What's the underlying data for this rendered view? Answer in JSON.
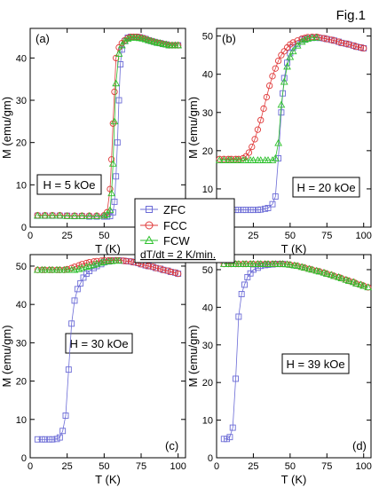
{
  "figure_label": "Fig.1",
  "legend": {
    "entries": [
      {
        "label": "ZFC",
        "marker": "square",
        "color": "#6b6bd6"
      },
      {
        "label": "FCC",
        "marker": "circle",
        "color": "#e03a3a"
      },
      {
        "label": "FCW",
        "marker": "triangle",
        "color": "#2ec02e"
      }
    ],
    "rate_text": "dT/dt = 2 K/min."
  },
  "chart_data": [
    {
      "type": "scatter",
      "panel": "(a)",
      "field_label": "H = 5 kOe",
      "xlabel": "T (K)",
      "ylabel": "M (emu/gm)",
      "xlim": [
        0,
        105
      ],
      "ylim": [
        0,
        47
      ],
      "xticks": [
        0,
        25,
        50,
        75,
        100
      ],
      "yticks": [
        0,
        10,
        20,
        30,
        40
      ],
      "series": [
        {
          "name": "ZFC",
          "x": [
            5,
            10,
            15,
            20,
            25,
            30,
            35,
            40,
            45,
            50,
            52,
            54,
            56,
            57,
            58,
            59,
            60,
            61,
            62,
            64,
            66,
            68,
            70,
            72,
            74,
            76,
            78,
            80,
            82,
            84,
            86,
            88,
            90,
            92,
            94,
            96,
            98,
            100
          ],
          "y": [
            2.7,
            2.7,
            2.7,
            2.7,
            2.7,
            2.6,
            2.6,
            2.5,
            2.5,
            2.5,
            2.5,
            2.6,
            3.5,
            6,
            12,
            20,
            30,
            38.5,
            42,
            44,
            44.8,
            45,
            45,
            45,
            44.9,
            44.7,
            44.5,
            44.2,
            44,
            43.8,
            43.6,
            43.5,
            43.3,
            43.2,
            43,
            43,
            43,
            43
          ]
        },
        {
          "name": "FCC",
          "x": [
            5,
            10,
            15,
            20,
            25,
            30,
            35,
            40,
            45,
            50,
            52,
            54,
            55,
            56,
            57,
            58,
            60,
            62,
            64,
            66,
            68,
            70,
            72,
            74,
            76,
            78,
            80,
            82,
            84,
            86,
            88,
            90,
            92,
            94,
            96,
            98,
            100
          ],
          "y": [
            2.8,
            2.8,
            2.8,
            2.8,
            2.7,
            2.7,
            2.7,
            2.7,
            2.7,
            2.8,
            3.5,
            9,
            16,
            24.5,
            32,
            40,
            42.5,
            43.5,
            44.2,
            44.7,
            45,
            45,
            45,
            44.9,
            44.7,
            44.5,
            44.2,
            44,
            43.8,
            43.6,
            43.5,
            43.3,
            43.2,
            43,
            43,
            43,
            43
          ]
        },
        {
          "name": "FCW",
          "x": [
            5,
            10,
            15,
            20,
            25,
            30,
            35,
            40,
            45,
            50,
            52,
            54,
            55,
            56,
            57,
            58,
            60,
            62,
            64,
            66,
            68,
            70,
            72,
            74,
            76,
            78,
            80,
            82,
            84,
            86,
            88,
            90,
            92,
            94,
            96,
            98,
            100
          ],
          "y": [
            2.7,
            2.7,
            2.7,
            2.7,
            2.6,
            2.6,
            2.6,
            2.6,
            2.6,
            2.7,
            3,
            4,
            8,
            15,
            25,
            34,
            41,
            43,
            44,
            44.5,
            44.8,
            44.8,
            44.8,
            44.7,
            44.6,
            44.4,
            44.2,
            44,
            43.8,
            43.6,
            43.5,
            43.3,
            43.2,
            43,
            43,
            43,
            43
          ]
        }
      ]
    },
    {
      "type": "scatter",
      "panel": "(b)",
      "field_label": "H = 20 kOe",
      "xlabel": "T (K)",
      "ylabel": "M (emu/gm)",
      "xlim": [
        0,
        105
      ],
      "ylim": [
        0,
        52
      ],
      "xticks": [
        0,
        25,
        50,
        75,
        100
      ],
      "yticks": [
        0,
        10,
        20,
        30,
        40,
        50
      ],
      "series": [
        {
          "name": "ZFC",
          "x": [
            2,
            5,
            8,
            10,
            13,
            15,
            18,
            20,
            23,
            25,
            28,
            30,
            33,
            35,
            38,
            40,
            42,
            44,
            45,
            46,
            48,
            50,
            52,
            55,
            58,
            60,
            62,
            65,
            68,
            70,
            73,
            75,
            78,
            80,
            83,
            85,
            88,
            90,
            93,
            95,
            98,
            100
          ],
          "y": [
            4.5,
            4.5,
            4.5,
            4.5,
            4.5,
            4.5,
            4.5,
            4.5,
            4.5,
            4.5,
            4.5,
            4.6,
            4.8,
            5,
            6,
            8,
            18,
            30,
            35,
            39,
            43,
            45.5,
            47,
            48,
            49,
            49.2,
            49.4,
            49.5,
            49.6,
            49.5,
            49.4,
            49.2,
            49,
            48.8,
            48.5,
            48.2,
            48,
            47.8,
            47.5,
            47.2,
            47,
            46.8
          ]
        },
        {
          "name": "FCC",
          "x": [
            2,
            5,
            8,
            10,
            13,
            15,
            18,
            20,
            22,
            24,
            26,
            28,
            30,
            32,
            34,
            36,
            38,
            40,
            42,
            44,
            46,
            48,
            50,
            52,
            55,
            58,
            60,
            62,
            65,
            68,
            70,
            73,
            75,
            78,
            80,
            83,
            85,
            88,
            90,
            93,
            95,
            98,
            100
          ],
          "y": [
            17.8,
            17.8,
            17.8,
            17.8,
            17.8,
            17.8,
            18,
            18.5,
            19.5,
            21,
            23,
            25.5,
            28,
            31,
            34,
            37,
            39.5,
            41.5,
            43.5,
            45,
            46,
            47,
            47.8,
            48.3,
            48.8,
            49.3,
            49.5,
            49.7,
            49.8,
            49.8,
            49.6,
            49.4,
            49.2,
            49,
            48.8,
            48.5,
            48.2,
            48,
            47.8,
            47.5,
            47.2,
            47,
            46.8
          ]
        },
        {
          "name": "FCW",
          "x": [
            2,
            5,
            8,
            10,
            13,
            15,
            18,
            20,
            23,
            25,
            28,
            30,
            33,
            35,
            38,
            40,
            42,
            44,
            46,
            48,
            50,
            52,
            55,
            58,
            60,
            62,
            65,
            68
          ],
          "y": [
            17.5,
            17.5,
            17.5,
            17.5,
            17.5,
            17.5,
            17.5,
            17.5,
            17.5,
            17.5,
            17.5,
            17.5,
            17.5,
            17.5,
            17.5,
            18,
            22,
            32,
            38,
            42,
            44.5,
            46,
            47.5,
            48.5,
            49,
            49.3,
            49.5,
            49.6
          ]
        }
      ]
    },
    {
      "type": "scatter",
      "panel": "(c)",
      "field_label": "H = 30 kOe",
      "xlabel": "T (K)",
      "ylabel": "M (emu/gm)",
      "xlim": [
        0,
        105
      ],
      "ylim": [
        0,
        53
      ],
      "xticks": [
        0,
        25,
        50,
        75,
        100
      ],
      "yticks": [
        0,
        10,
        20,
        30,
        40,
        50
      ],
      "series": [
        {
          "name": "ZFC",
          "x": [
            5,
            8,
            10,
            13,
            15,
            18,
            20,
            22,
            24,
            26,
            28,
            30,
            32,
            34,
            36,
            38,
            40,
            43,
            45,
            48,
            50,
            53,
            55,
            58,
            60,
            63,
            65,
            68,
            70,
            73,
            75,
            78,
            80,
            83,
            85,
            88,
            90,
            93,
            95,
            98,
            100
          ],
          "y": [
            4.8,
            4.8,
            4.8,
            4.8,
            4.8,
            4.9,
            5.3,
            7,
            11,
            23,
            35,
            41,
            44,
            45.5,
            47,
            48,
            48.7,
            49.5,
            50,
            50.5,
            51,
            51.2,
            51.4,
            51.5,
            51.5,
            51.4,
            51.3,
            51.2,
            51,
            50.8,
            50.5,
            50.2,
            50,
            49.8,
            49.5,
            49.3,
            49,
            48.8,
            48.5,
            48.3,
            48
          ]
        },
        {
          "name": "FCC",
          "x": [
            5,
            8,
            10,
            13,
            15,
            18,
            20,
            23,
            25,
            28,
            30,
            33,
            35,
            38,
            40,
            43,
            45,
            48,
            50,
            53,
            55,
            58,
            60,
            63,
            65,
            68,
            70,
            73,
            75,
            78,
            80,
            83,
            85,
            88,
            90,
            93,
            95,
            98,
            100
          ],
          "y": [
            49,
            49,
            49,
            49,
            49,
            49,
            49,
            49,
            49.2,
            49.5,
            49.8,
            50.2,
            50.5,
            50.8,
            51,
            51.2,
            51.3,
            51.4,
            51.5,
            51.5,
            51.5,
            51.5,
            51.5,
            51.4,
            51.3,
            51.2,
            51,
            50.8,
            50.5,
            50.2,
            50,
            49.8,
            49.5,
            49.3,
            49,
            48.8,
            48.5,
            48.3,
            48
          ]
        },
        {
          "name": "FCW",
          "x": [
            5,
            8,
            10,
            13,
            15,
            18,
            20,
            23,
            25,
            28,
            30,
            33,
            35,
            38,
            40,
            43,
            45,
            48,
            50,
            53,
            55,
            58,
            60
          ],
          "y": [
            49,
            49,
            49,
            49,
            49,
            49,
            49,
            49,
            49,
            49,
            49,
            49.2,
            49.5,
            49.8,
            50,
            50.3,
            50.6,
            50.9,
            51.1,
            51.2,
            51.3,
            51.4,
            51.4
          ]
        }
      ]
    },
    {
      "type": "scatter",
      "panel": "(d)",
      "field_label": "H = 39 kOe",
      "xlabel": "T (K)",
      "ylabel": "M (emu/gm)",
      "xlim": [
        0,
        105
      ],
      "ylim": [
        0,
        54
      ],
      "xticks": [
        0,
        25,
        50,
        75,
        100
      ],
      "yticks": [
        0,
        10,
        20,
        30,
        40,
        50
      ],
      "series": [
        {
          "name": "ZFC",
          "x": [
            5,
            7,
            9,
            11,
            13,
            15,
            17,
            19,
            21,
            23,
            25,
            28,
            30,
            33,
            35,
            38,
            40,
            43,
            45
          ],
          "y": [
            5,
            5,
            5.5,
            8,
            21,
            37.5,
            43.5,
            46,
            48,
            49,
            50,
            50.5,
            51,
            51.2,
            51.3,
            51.4,
            51.5,
            51.5,
            51.5
          ]
        },
        {
          "name": "FCC",
          "x": [
            5,
            8,
            10,
            13,
            15,
            18,
            20,
            23,
            25,
            28,
            30,
            33,
            35,
            38,
            40,
            43,
            45,
            48,
            50,
            53,
            55,
            58,
            60,
            63,
            65,
            68,
            70,
            73,
            75,
            78,
            80,
            83,
            85,
            88,
            90,
            93,
            95,
            98,
            100,
            103
          ],
          "y": [
            51.5,
            51.5,
            51.5,
            51.5,
            51.5,
            51.5,
            51.5,
            51.5,
            51.5,
            51.5,
            51.5,
            51.5,
            51.5,
            51.5,
            51.5,
            51.5,
            51.5,
            51.4,
            51.3,
            51.1,
            51,
            50.7,
            50.5,
            50.2,
            50,
            49.7,
            49.5,
            49.2,
            48.9,
            48.6,
            48.3,
            48,
            47.7,
            47.3,
            47,
            46.7,
            46.3,
            46,
            45.7,
            45.3
          ]
        },
        {
          "name": "FCW",
          "x": [
            5,
            8,
            10,
            13,
            15,
            18,
            20,
            23,
            25,
            28,
            30,
            33,
            35,
            38,
            40,
            43,
            45,
            48,
            50,
            53,
            55,
            58,
            60,
            63,
            65,
            68,
            70,
            73,
            75,
            78,
            80,
            83,
            85,
            88,
            90,
            93,
            95,
            98,
            100,
            103
          ],
          "y": [
            51.5,
            51.5,
            51.5,
            51.5,
            51.5,
            51.5,
            51.5,
            51.5,
            51.5,
            51.5,
            51.5,
            51.5,
            51.5,
            51.5,
            51.5,
            51.5,
            51.5,
            51.4,
            51.3,
            51.1,
            51,
            50.7,
            50.5,
            50.2,
            50,
            49.7,
            49.5,
            49.2,
            48.9,
            48.6,
            48.3,
            48,
            47.7,
            47.3,
            47,
            46.7,
            46.3,
            46,
            45.7,
            45.3
          ]
        }
      ]
    }
  ]
}
